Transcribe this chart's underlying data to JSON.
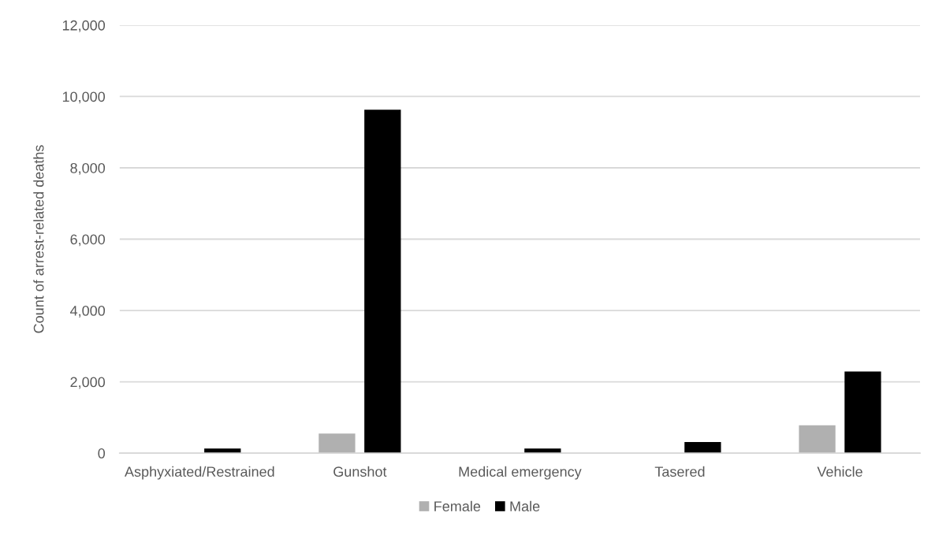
{
  "chart_data": {
    "type": "bar",
    "ylabel": "Count of arrest-related deaths",
    "categories": [
      "Asphyxiated/Restrained",
      "Gunshot",
      "Medical emergency",
      "Tasered",
      "Vehicle"
    ],
    "series": [
      {
        "name": "Female",
        "color": "#b0b0b0",
        "values": [
          null,
          550,
          null,
          null,
          780
        ]
      },
      {
        "name": "Male",
        "color": "#000000",
        "values": [
          130,
          9630,
          130,
          310,
          2290
        ]
      }
    ],
    "ylim": [
      0,
      12000
    ],
    "yticks": [
      0,
      {
        "value": 2000,
        "label": "2,000"
      },
      {
        "value": 4000,
        "label": "4,000"
      },
      {
        "value": 6000,
        "label": "6,000"
      },
      {
        "value": 8000,
        "label": "8,000"
      },
      {
        "value": 10000,
        "label": "10,000"
      },
      {
        "value": 12000,
        "label": "12,000"
      }
    ],
    "grid": "y",
    "legend": "bottom"
  }
}
